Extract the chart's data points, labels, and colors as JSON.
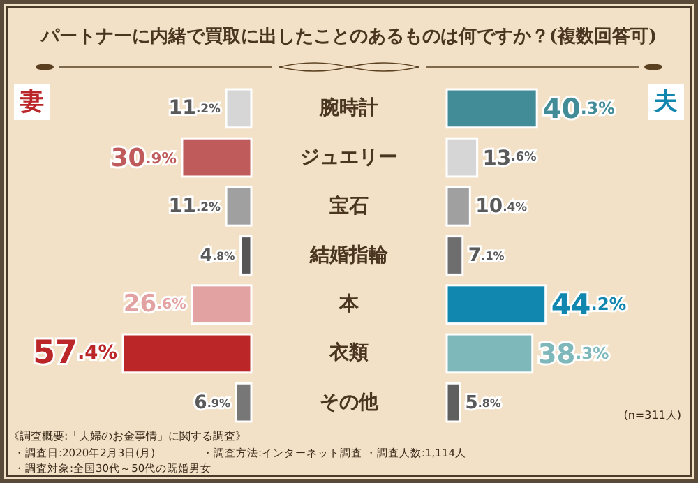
{
  "chart_data": [
    {
      "type": "bar",
      "orientation": "horizontal",
      "title": "パートナーに内緒で買取に出したことのあるものは何ですか？(複数回答可)",
      "categories": [
        "腕時計",
        "ジュエリー",
        "宝石",
        "結婚指輪",
        "本",
        "衣類",
        "その他"
      ],
      "series": [
        {
          "name": "妻",
          "color": "#bb2629",
          "values": [
            11.2,
            30.9,
            11.2,
            4.8,
            26.6,
            57.4,
            6.9
          ],
          "colors": [
            "#d6d6d6",
            "#bf5b5b",
            "#a0a0a0",
            "#555555",
            "#e3a2a2",
            "#bb2629",
            "#777777"
          ],
          "value_labels": [
            "11.2%",
            "30.9%",
            "11.2%",
            "4.8%",
            "26.6%",
            "57.4%",
            "6.9%"
          ]
        }
      ],
      "annotations": [
        "《調査概要:「夫婦のお金事情」に関する調査》",
        "・調査日:2020年2月3日(月)",
        "・調査方法:インターネット調査",
        "・調査人数:1,114人",
        "・調査対象:全国30代～50代の既婚男女"
      ]
    },
    {
      "type": "bar",
      "orientation": "horizontal",
      "categories": [
        "腕時計",
        "ジュエリー",
        "宝石",
        "結婚指輪",
        "本",
        "衣類",
        "その他"
      ],
      "tick_labels": false,
      "series": [
        {
          "name": "夫",
          "color": "#1186ae",
          "values": [
            40.3,
            13.6,
            10.4,
            7.1,
            44.2,
            38.3,
            5.8
          ],
          "colors": [
            "#428c98",
            "#d6d6d6",
            "#a0a0a0",
            "#6e6e6e",
            "#1186ae",
            "#7fb8ba",
            "#5f5f5f"
          ],
          "value_labels": [
            "40.3%",
            "13.6%",
            "10.4%",
            "7.1%",
            "44.2%",
            "38.3%",
            "5.8%"
          ]
        }
      ],
      "annotations": [
        "(n=311人)"
      ]
    }
  ]
}
